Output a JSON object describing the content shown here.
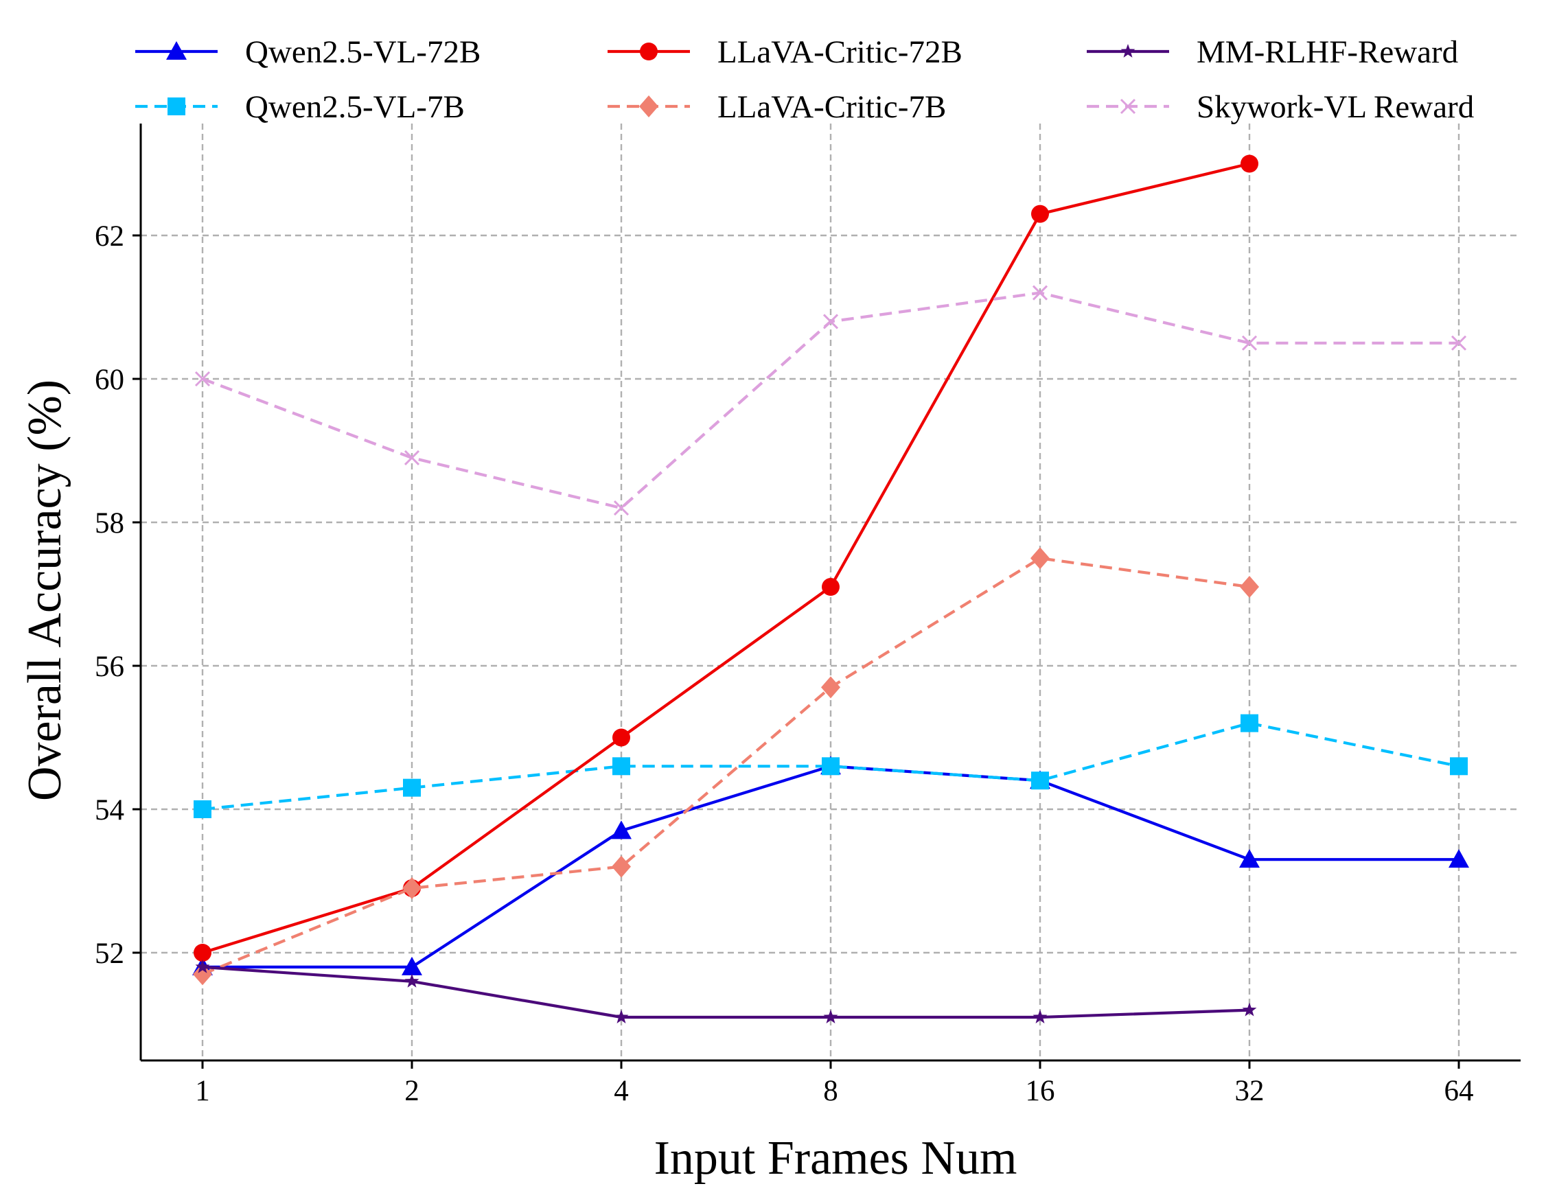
{
  "chart_data": {
    "type": "line",
    "title": "",
    "xlabel": "Input Frames Num",
    "ylabel": "Overall Accuracy (%)",
    "x": [
      1,
      2,
      4,
      8,
      16,
      32,
      64
    ],
    "x_tick_labels": [
      "1",
      "2",
      "4",
      "8",
      "16",
      "32",
      "64"
    ],
    "x_scale": "log2",
    "y_ticks": [
      52,
      54,
      56,
      58,
      60,
      62
    ],
    "ylim": [
      50.5,
      63.6
    ],
    "grid": true,
    "legend": {
      "placement": "top",
      "columns": 3
    },
    "series": [
      {
        "name": "Qwen2.5-VL-72B",
        "color": "#0000ee",
        "dash": "solid",
        "marker": "triangle",
        "values": [
          51.8,
          51.8,
          53.7,
          54.6,
          54.4,
          53.3,
          53.3
        ]
      },
      {
        "name": "Qwen2.5-VL-7B",
        "color": "#00bfff",
        "dash": "dashed",
        "marker": "square",
        "values": [
          54.0,
          54.3,
          54.6,
          54.6,
          54.4,
          55.2,
          54.6
        ]
      },
      {
        "name": "LLaVA-Critic-72B",
        "color": "#ee0000",
        "dash": "solid",
        "marker": "circle",
        "values": [
          52.0,
          52.9,
          55.0,
          57.1,
          62.3,
          63.0,
          null
        ]
      },
      {
        "name": "LLaVA-Critic-7B",
        "color": "#f08070",
        "dash": "dashed",
        "marker": "diamond",
        "values": [
          51.7,
          52.9,
          53.2,
          55.7,
          57.5,
          57.1,
          null
        ]
      },
      {
        "name": "MM-RLHF-Reward",
        "color": "#4b0a7a",
        "dash": "solid",
        "marker": "star",
        "values": [
          51.8,
          51.6,
          51.1,
          51.1,
          51.1,
          51.2,
          null
        ]
      },
      {
        "name": "Skywork-VL Reward",
        "color": "#dda0dd",
        "dash": "dashed",
        "marker": "x",
        "values": [
          60.0,
          58.9,
          58.2,
          60.8,
          61.2,
          60.5,
          60.5
        ]
      }
    ]
  }
}
